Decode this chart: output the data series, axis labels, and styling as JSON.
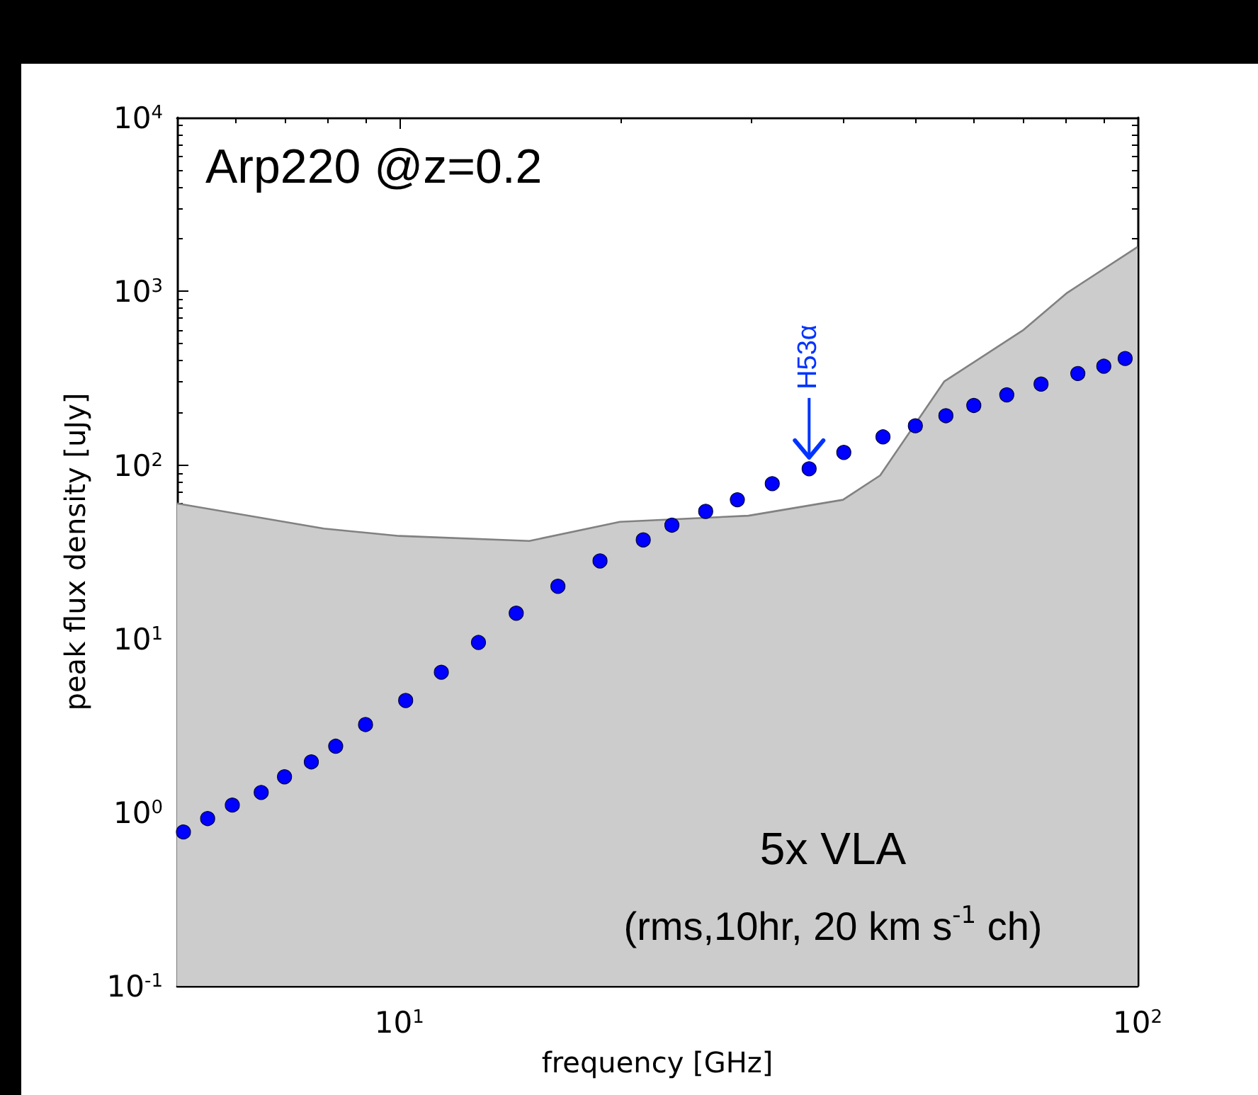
{
  "chart_data": {
    "type": "scatter",
    "xlabel": "frequency [GHz]",
    "ylabel": "peak flux density [uJy]",
    "log": "xy",
    "xlim": [
      5,
      100
    ],
    "ylim": [
      0.1,
      10000
    ],
    "xticks": [
      {
        "value": 6,
        "label": null
      },
      {
        "value": 7,
        "label": null
      },
      {
        "value": 8,
        "label": null
      },
      {
        "value": 9,
        "label": null
      },
      {
        "value": 10,
        "label": "10$^{1}$"
      },
      {
        "value": 20,
        "label": null
      },
      {
        "value": 30,
        "label": null
      },
      {
        "value": 40,
        "label": null
      },
      {
        "value": 50,
        "label": null
      },
      {
        "value": 60,
        "label": null
      },
      {
        "value": 70,
        "label": null
      },
      {
        "value": 80,
        "label": null
      },
      {
        "value": 90,
        "label": null
      },
      {
        "value": 100,
        "label": "10$^{2}$"
      }
    ],
    "yticks": [
      {
        "value": 0.1,
        "label": "10$^{-1}$"
      },
      {
        "value": 0.2,
        "label": null
      },
      {
        "value": 0.3,
        "label": null
      },
      {
        "value": 0.4,
        "label": null
      },
      {
        "value": 0.5,
        "label": null
      },
      {
        "value": 0.6,
        "label": null
      },
      {
        "value": 0.7,
        "label": null
      },
      {
        "value": 0.8,
        "label": null
      },
      {
        "value": 0.9,
        "label": null
      },
      {
        "value": 1,
        "label": "10$^{0}$"
      },
      {
        "value": 2,
        "label": null
      },
      {
        "value": 3,
        "label": null
      },
      {
        "value": 4,
        "label": null
      },
      {
        "value": 5,
        "label": null
      },
      {
        "value": 6,
        "label": null
      },
      {
        "value": 7,
        "label": null
      },
      {
        "value": 8,
        "label": null
      },
      {
        "value": 9,
        "label": null
      },
      {
        "value": 10,
        "label": "10$^{1}$"
      },
      {
        "value": 20,
        "label": null
      },
      {
        "value": 30,
        "label": null
      },
      {
        "value": 40,
        "label": null
      },
      {
        "value": 50,
        "label": null
      },
      {
        "value": 60,
        "label": null
      },
      {
        "value": 70,
        "label": null
      },
      {
        "value": 80,
        "label": null
      },
      {
        "value": 90,
        "label": null
      },
      {
        "value": 100,
        "label": "10$^{2}$"
      },
      {
        "value": 200,
        "label": null
      },
      {
        "value": 300,
        "label": null
      },
      {
        "value": 400,
        "label": null
      },
      {
        "value": 500,
        "label": null
      },
      {
        "value": 600,
        "label": null
      },
      {
        "value": 700,
        "label": null
      },
      {
        "value": 800,
        "label": null
      },
      {
        "value": 900,
        "label": null
      },
      {
        "value": 1000,
        "label": "10$^{3}$"
      },
      {
        "value": 2000,
        "label": null
      },
      {
        "value": 3000,
        "label": null
      },
      {
        "value": 4000,
        "label": null
      },
      {
        "value": 5000,
        "label": null
      },
      {
        "value": 6000,
        "label": null
      },
      {
        "value": 7000,
        "label": null
      },
      {
        "value": 8000,
        "label": null
      },
      {
        "value": 9000,
        "label": null
      },
      {
        "value": 10000,
        "label": "10$^{4}$"
      }
    ],
    "series": [
      {
        "type": "area",
        "color": "#cccccc",
        "x": [
          5,
          7.9,
          10,
          15,
          19.9,
          29.7,
          39.9,
          44.8,
          54.7,
          70.1,
          80.3,
          100
        ],
        "values": [
          60,
          43,
          39,
          36.5,
          47,
          51,
          63,
          87,
          302,
          600,
          980,
          1800
        ]
      },
      {
        "color": "#0000ff",
        "marker": "circle",
        "x": [
          5.1,
          5.5,
          5.94,
          6.5,
          6.99,
          7.6,
          8.2,
          9.0,
          10.2,
          11.4,
          12.8,
          14.4,
          16.4,
          18.7,
          21.4,
          23.4,
          26,
          28.7,
          32,
          35.9,
          40,
          45.2,
          50,
          55,
          60,
          66.5,
          74,
          83,
          90,
          96.2
        ],
        "values": [
          0.77,
          0.92,
          1.1,
          1.3,
          1.6,
          1.95,
          2.4,
          3.2,
          4.4,
          6.4,
          9.5,
          14,
          20,
          28,
          37,
          45,
          54,
          63,
          78,
          95,
          118,
          145,
          168,
          192,
          220,
          253,
          292,
          336,
          370,
          410
        ]
      }
    ],
    "annotations": [
      "Arp220 @z=0.2",
      "5x VLA",
      "(rms,10hr, 20 km s$^{-1}$ ch)",
      {
        "text": "H53α",
        "x": 35.9,
        "y": 95
      }
    ]
  }
}
